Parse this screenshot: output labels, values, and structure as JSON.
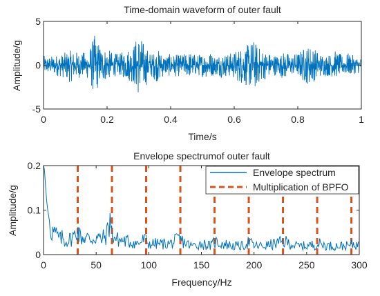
{
  "colors": {
    "signal": "#0072bd",
    "bpfo": "#d95319",
    "axis": "#262626"
  },
  "chart_data": [
    {
      "type": "line",
      "title": "Time-domain waveform of outer fault",
      "xlabel": "Time/s",
      "ylabel": "Amplitude/g",
      "xlim": [
        0,
        1
      ],
      "ylim": [
        -5,
        5
      ],
      "xticks": [
        0,
        0.2,
        0.4,
        0.6,
        0.8,
        1
      ],
      "xtick_labels": [
        "0",
        "0.2",
        "0.4",
        "0.6",
        "0.8",
        "1"
      ],
      "yticks": [
        5,
        0,
        -5
      ],
      "ytick_labels": [
        "5",
        "0",
        "-5"
      ],
      "grid": false,
      "series": [
        {
          "color": "#0072bd",
          "x": [
            0,
            0.02,
            0.04,
            0.06,
            0.08,
            0.1,
            0.12,
            0.14,
            0.16,
            0.18,
            0.2,
            0.22,
            0.24,
            0.26,
            0.28,
            0.3,
            0.32,
            0.34,
            0.36,
            0.38,
            0.4,
            0.42,
            0.44,
            0.46,
            0.48,
            0.5,
            0.52,
            0.54,
            0.56,
            0.58,
            0.6,
            0.62,
            0.64,
            0.66,
            0.68,
            0.7,
            0.72,
            0.74,
            0.76,
            0.78,
            0.8,
            0.82,
            0.84,
            0.86,
            0.88,
            0.9,
            0.92,
            0.94,
            0.96,
            0.98,
            1
          ],
          "max": [
            1.1,
            1.0,
            1.2,
            1.3,
            1.7,
            1.6,
            1.5,
            1.5,
            3.5,
            2.3,
            1.9,
            1.4,
            1.3,
            2.0,
            2.2,
            3.8,
            2.2,
            1.3,
            1.8,
            1.2,
            1.3,
            1.2,
            1.3,
            1.6,
            1.2,
            1.4,
            1.7,
            1.1,
            1.5,
            1.3,
            1.6,
            2.1,
            2.3,
            3.0,
            2.0,
            1.6,
            1.3,
            1.2,
            1.6,
            1.2,
            1.5,
            2.0,
            2.4,
            1.7,
            1.2,
            1.3,
            1.7,
            1.1,
            1.4,
            1.0,
            0.9
          ],
          "min": [
            -1.1,
            -1.0,
            -1.2,
            -1.4,
            -2.0,
            -1.6,
            -1.4,
            -1.6,
            -3.5,
            -2.1,
            -1.7,
            -1.3,
            -1.2,
            -1.7,
            -2.0,
            -3.6,
            -2.5,
            -1.4,
            -2.0,
            -1.2,
            -1.3,
            -1.3,
            -1.2,
            -1.4,
            -1.2,
            -1.3,
            -1.5,
            -1.1,
            -1.4,
            -1.3,
            -1.6,
            -2.1,
            -2.4,
            -3.1,
            -2.0,
            -1.6,
            -1.2,
            -1.2,
            -1.7,
            -1.1,
            -1.3,
            -2.0,
            -2.3,
            -1.5,
            -1.2,
            -1.3,
            -1.4,
            -1.1,
            -1.2,
            -1.0,
            -0.9
          ]
        }
      ]
    },
    {
      "type": "line",
      "title": "Envelope spectrumof outer fault",
      "xlabel": "Frequency/Hz",
      "ylabel": "Amplitude/g",
      "xlim": [
        0,
        300
      ],
      "ylim": [
        0,
        0.2
      ],
      "xticks": [
        0,
        50,
        100,
        150,
        200,
        250,
        300
      ],
      "xtick_labels": [
        "0",
        "50",
        "100",
        "150",
        "200",
        "250",
        "300"
      ],
      "yticks": [
        0.2,
        0.1,
        0
      ],
      "ytick_labels": [
        "0.2",
        "0.1",
        "0"
      ],
      "grid": false,
      "legend": {
        "placement": "top-right",
        "entries": [
          "Envelope spectrum",
          "Multiplication of BPFO"
        ]
      },
      "series": [
        {
          "name": "Envelope spectrum",
          "color": "#0072bd",
          "x": [
            0,
            1,
            2,
            3,
            4,
            5,
            6,
            7,
            8,
            10,
            12,
            14,
            16,
            18,
            20,
            25,
            30,
            32,
            35,
            40,
            45,
            50,
            55,
            60,
            63,
            65,
            70,
            80,
            90,
            96,
            100,
            110,
            120,
            129,
            140,
            150,
            160,
            162,
            170,
            180,
            190,
            195,
            200,
            210,
            220,
            229,
            240,
            250,
            262,
            270,
            280,
            290,
            295,
            300
          ],
          "y": [
            0.2,
            0.19,
            0.15,
            0.12,
            0.1,
            0.085,
            0.07,
            0.06,
            0.055,
            0.05,
            0.045,
            0.04,
            0.035,
            0.04,
            0.03,
            0.035,
            0.045,
            0.06,
            0.04,
            0.04,
            0.035,
            0.04,
            0.035,
            0.045,
            0.085,
            0.045,
            0.035,
            0.03,
            0.025,
            0.035,
            0.025,
            0.025,
            0.025,
            0.035,
            0.02,
            0.025,
            0.02,
            0.03,
            0.025,
            0.02,
            0.02,
            0.03,
            0.02,
            0.02,
            0.025,
            0.03,
            0.02,
            0.02,
            0.025,
            0.02,
            0.02,
            0.02,
            0.025,
            0.02
          ]
        },
        {
          "name": "Multiplication of BPFO",
          "color": "#d95319",
          "style": "dashed",
          "lines_at": [
            32.5,
            65,
            97.5,
            130,
            162.5,
            195,
            227.5,
            260,
            292.5
          ]
        }
      ]
    }
  ]
}
